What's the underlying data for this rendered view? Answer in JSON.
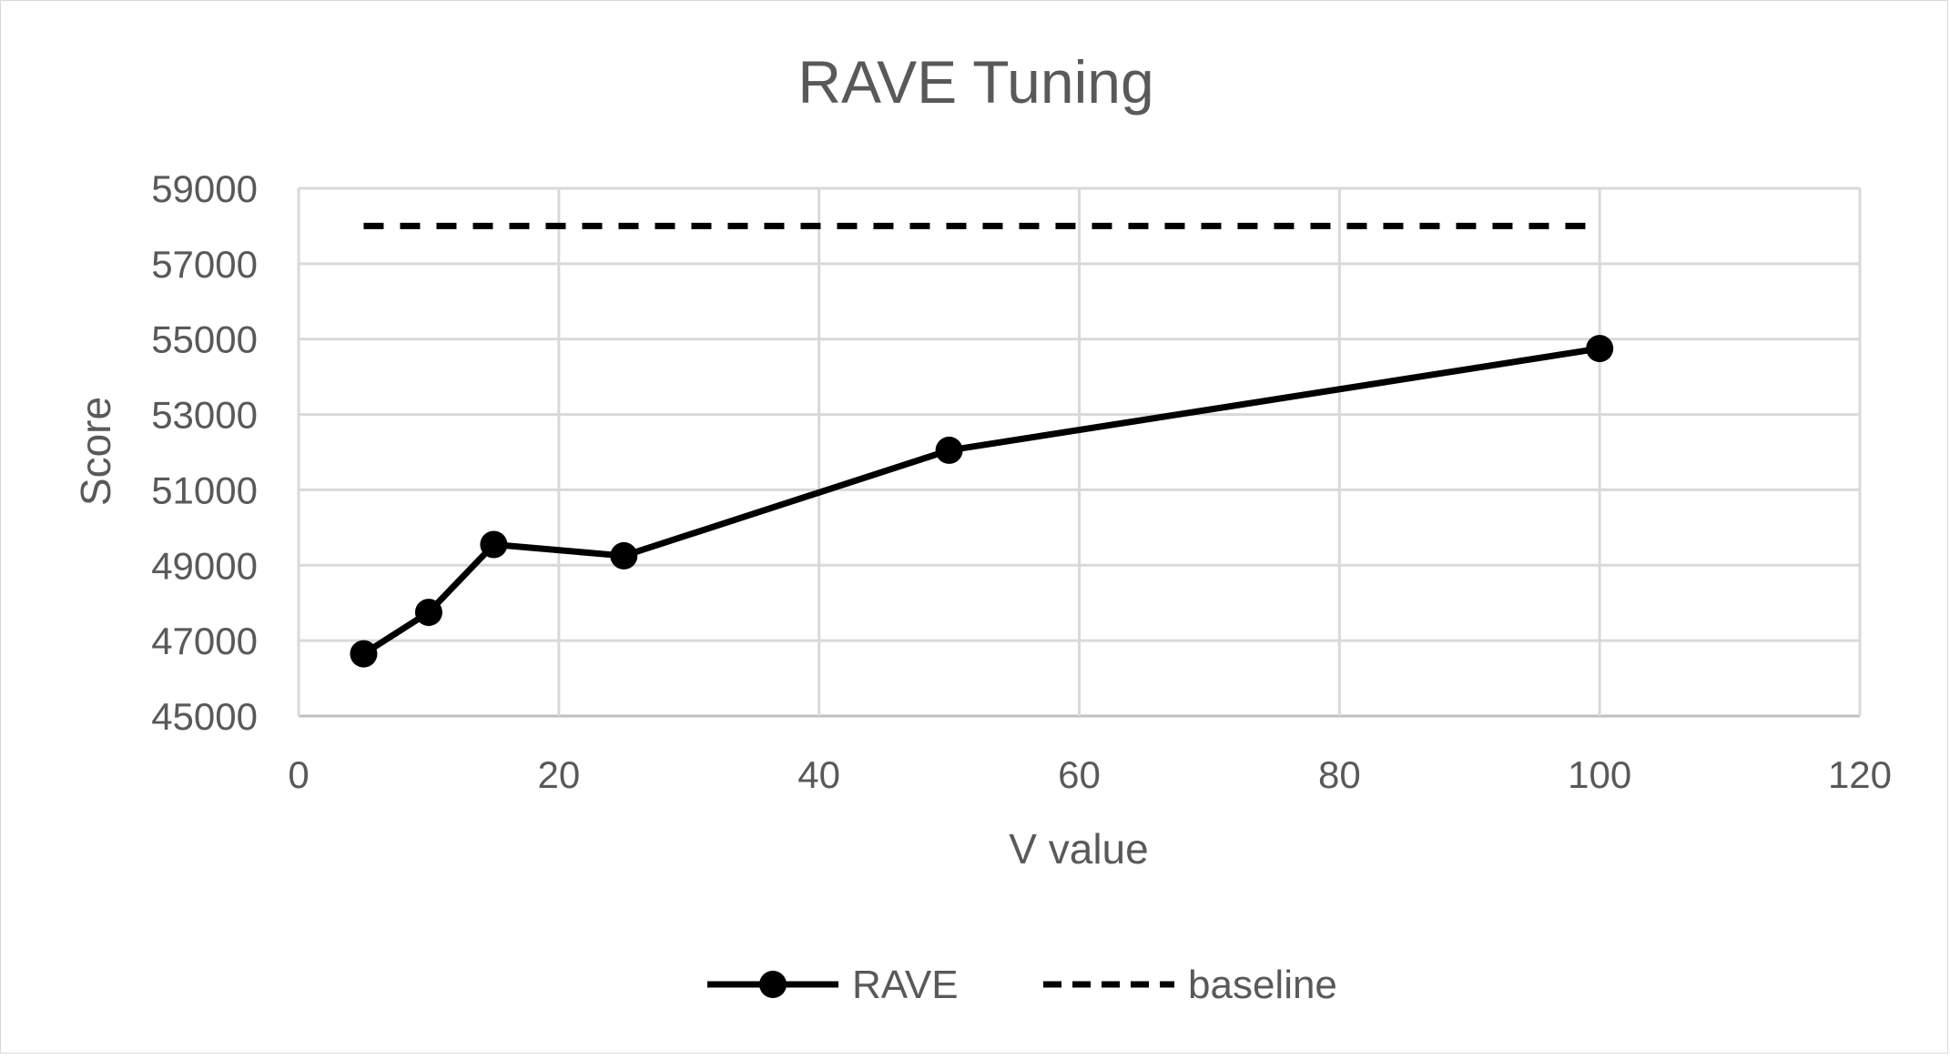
{
  "chart_data": {
    "type": "scatter",
    "title": "RAVE Tuning",
    "xlabel": "V value",
    "ylabel": "Score",
    "xlim": [
      0,
      120
    ],
    "ylim": [
      45000,
      59000
    ],
    "x_ticks": [
      0,
      20,
      40,
      60,
      80,
      100,
      120
    ],
    "y_ticks": [
      45000,
      47000,
      49000,
      51000,
      53000,
      55000,
      57000,
      59000
    ],
    "grid": true,
    "legend_position": "bottom",
    "series": [
      {
        "name": "RAVE",
        "style": "solid line with circle markers",
        "color": "#000000",
        "x": [
          5,
          10,
          15,
          25,
          50,
          100
        ],
        "y": [
          46650,
          47750,
          49550,
          49250,
          52050,
          54750
        ]
      },
      {
        "name": "baseline",
        "style": "dashed line",
        "color": "#000000",
        "x": [
          5,
          100
        ],
        "y": [
          58000,
          58000
        ]
      }
    ]
  }
}
